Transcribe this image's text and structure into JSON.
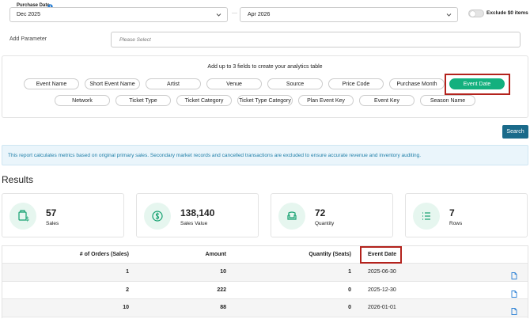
{
  "filters": {
    "purchase_date_label": "Purchase Date",
    "start": "Dec 2025",
    "separator": "—",
    "end": "Apr 2026",
    "exclude_label": "Exclude $0 items"
  },
  "parameter": {
    "label": "Add Parameter",
    "placeholder": "Please Select"
  },
  "fields": {
    "instruction": "Add up to 3 fields to create your analytics table",
    "options": [
      {
        "label": "Event Name",
        "selected": false
      },
      {
        "label": "Short Event Name",
        "selected": false
      },
      {
        "label": "Artist",
        "selected": false
      },
      {
        "label": "Venue",
        "selected": false
      },
      {
        "label": "Source",
        "selected": false
      },
      {
        "label": "Price Code",
        "selected": false
      },
      {
        "label": "Purchase Month",
        "selected": false
      },
      {
        "label": "Event Date",
        "selected": true
      },
      {
        "label": "Network",
        "selected": false
      },
      {
        "label": "Ticket Type",
        "selected": false
      },
      {
        "label": "Ticket Category",
        "selected": false
      },
      {
        "label": "Ticket Type Category",
        "selected": false
      },
      {
        "label": "Plan Event Key",
        "selected": false
      },
      {
        "label": "Event Key",
        "selected": false
      },
      {
        "label": "Season Name",
        "selected": false
      }
    ]
  },
  "search_button": "Search",
  "notice": "This report calculates metrics based on original primary sales. Secondary market records and cancelled transactions are excluded to ensure accurate revenue and inventory auditing.",
  "results": {
    "title": "Results",
    "cards": [
      {
        "value": "57",
        "label": "Sales"
      },
      {
        "value": "138,140",
        "label": "Sales Value"
      },
      {
        "value": "72",
        "label": "Quantity"
      },
      {
        "value": "7",
        "label": "Rows"
      }
    ]
  },
  "table": {
    "columns": [
      "# of Orders (Sales)",
      "Amount",
      "Quantity (Seats)",
      "Event Date"
    ],
    "rows": [
      [
        1,
        10,
        1,
        "2025-06-30"
      ],
      [
        2,
        222,
        0,
        "2025-12-30"
      ],
      [
        10,
        88,
        0,
        "2026-01-01"
      ]
    ]
  }
}
